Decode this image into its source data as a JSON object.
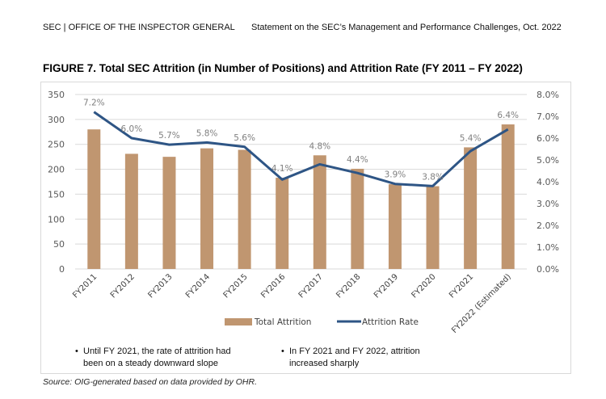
{
  "header": {
    "left": "SEC | OFFICE OF THE INSPECTOR GENERAL",
    "right": "Statement on the SEC’s Management and Performance Challenges, Oct. 2022"
  },
  "notes": [
    "Until FY 2021, the rate of attrition had been on a steady downward slope",
    "In FY 2021 and FY 2022, attrition increased sharply"
  ],
  "source": "Source: OIG-generated based on data provided by OHR.",
  "chart_data": {
    "type": "bar+line",
    "title": "FIGURE 7. Total SEC Attrition (in Number of Positions) and Attrition Rate (FY 2011 – FY 2022)",
    "categories": [
      "FY2011",
      "FY2012",
      "FY2013",
      "FY2014",
      "FY2015",
      "FY2016",
      "FY2017",
      "FY2018",
      "FY2019",
      "FY2020",
      "FY2021",
      "FY2022 (Estimated)"
    ],
    "series": [
      {
        "name": "Total Attrition",
        "type": "bar",
        "axis": "left",
        "color": "#c09670",
        "values": [
          280,
          231,
          225,
          242,
          239,
          183,
          228,
          201,
          170,
          166,
          244,
          290
        ]
      },
      {
        "name": "Attrition Rate",
        "type": "line",
        "axis": "right",
        "color": "#2e5585",
        "values": [
          7.2,
          6.0,
          5.7,
          5.8,
          5.6,
          4.1,
          4.8,
          4.4,
          3.9,
          3.8,
          5.4,
          6.4
        ],
        "labels": [
          "7.2%",
          "6.0%",
          "5.7%",
          "5.8%",
          "5.6%",
          "4.1%",
          "4.8%",
          "4.4%",
          "3.9%",
          "3.8%",
          "5.4%",
          "6.4%"
        ]
      }
    ],
    "ylim_left": [
      0,
      350
    ],
    "yticks_left": [
      "0",
      "50",
      "100",
      "150",
      "200",
      "250",
      "300",
      "350"
    ],
    "ylim_right": [
      0,
      8
    ],
    "yticks_right": [
      "0.0%",
      "1.0%",
      "2.0%",
      "3.0%",
      "4.0%",
      "5.0%",
      "6.0%",
      "7.0%",
      "8.0%"
    ],
    "grid": true,
    "legend": "bottom"
  }
}
